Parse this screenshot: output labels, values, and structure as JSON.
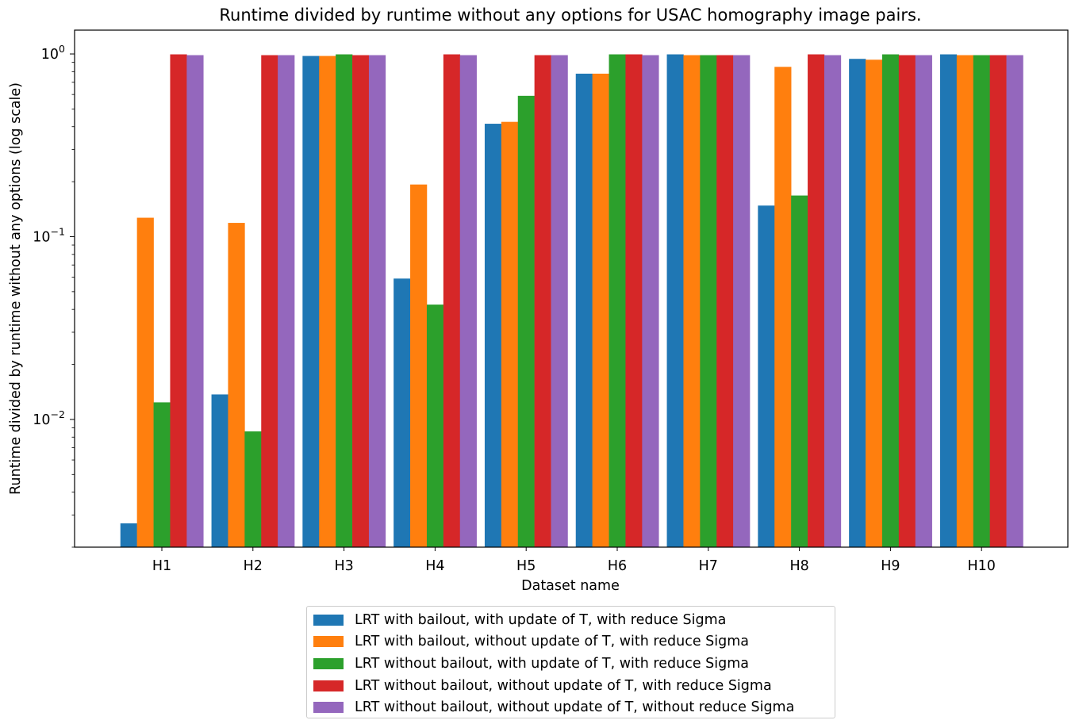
{
  "chart_data": {
    "type": "bar",
    "title": "Runtime divided by runtime without any options for USAC homography image pairs.",
    "xlabel": "Dataset name",
    "ylabel": "Runtime divided by runtime without any options (log scale)",
    "yscale": "log",
    "ylim": [
      0.002,
      1.35
    ],
    "yticks": [
      {
        "base": "10",
        "exp": "0",
        "value": 1
      },
      {
        "base": "10",
        "exp": "−1",
        "value": 0.1
      },
      {
        "base": "10",
        "exp": "−2",
        "value": 0.01
      }
    ],
    "grid": false,
    "legend_position": "below",
    "categories": [
      "H1",
      "H2",
      "H3",
      "H4",
      "H5",
      "H6",
      "H7",
      "H8",
      "H9",
      "H10"
    ],
    "series": [
      {
        "name": "LRT with bailout, with update of T, with reduce Sigma",
        "color": "#1f77b4",
        "values": [
          0.0027,
          0.0137,
          0.975,
          0.059,
          0.415,
          0.78,
          0.995,
          0.148,
          0.94,
          0.995
        ]
      },
      {
        "name": "LRT with bailout, without update of T, with reduce Sigma",
        "color": "#ff7f0e",
        "values": [
          0.127,
          0.119,
          0.975,
          0.193,
          0.425,
          0.78,
          0.985,
          0.85,
          0.93,
          0.985
        ]
      },
      {
        "name": "LRT without bailout, with update of T, with reduce Sigma",
        "color": "#2ca02c",
        "values": [
          0.0124,
          0.0086,
          0.995,
          0.0425,
          0.59,
          0.995,
          0.985,
          0.168,
          0.995,
          0.985
        ]
      },
      {
        "name": "LRT without bailout, without update of T, with reduce Sigma",
        "color": "#d62728",
        "values": [
          0.995,
          0.985,
          0.985,
          0.995,
          0.985,
          0.995,
          0.985,
          0.995,
          0.985,
          0.985
        ]
      },
      {
        "name": "LRT without bailout, without update of T, without reduce Sigma",
        "color": "#9467bd",
        "values": [
          0.985,
          0.985,
          0.985,
          0.985,
          0.985,
          0.985,
          0.985,
          0.985,
          0.985,
          0.985
        ]
      }
    ]
  }
}
